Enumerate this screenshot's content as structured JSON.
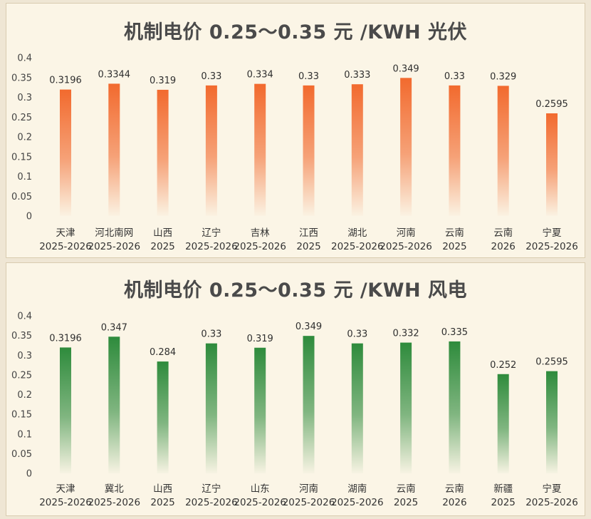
{
  "chart_data": [
    {
      "type": "bar",
      "title": "机制电价 0.25～0.35 元 /KWH 光伏",
      "categories": [
        [
          "天津",
          "2025-2026"
        ],
        [
          "河北南网",
          "2025-2026"
        ],
        [
          "山西",
          "2025"
        ],
        [
          "辽宁",
          "2025-2026"
        ],
        [
          "吉林",
          "2025-2026"
        ],
        [
          "江西",
          "2025"
        ],
        [
          "湖北",
          "2025-2026"
        ],
        [
          "河南",
          "2025-2026"
        ],
        [
          "云南",
          "2025"
        ],
        [
          "云南",
          "2026"
        ],
        [
          "宁夏",
          "2025-2026"
        ]
      ],
      "values": [
        0.3196,
        0.3344,
        0.319,
        0.33,
        0.334,
        0.33,
        0.333,
        0.349,
        0.33,
        0.329,
        0.2595
      ],
      "data_labels": [
        "0.3196",
        "0.3344",
        "0.319",
        "0.33",
        "0.334",
        "0.33",
        "0.333",
        "0.349",
        "0.33",
        "0.329",
        "0.2595"
      ],
      "ylim": [
        0,
        0.4
      ],
      "yticks": [
        "0",
        "0.05",
        "0.1",
        "0.15",
        "0.2",
        "0.25",
        "0.3",
        "0.35",
        "0.4"
      ],
      "grid": false,
      "xlabel": "",
      "ylabel": "",
      "color": "#f26a2e"
    },
    {
      "type": "bar",
      "title": "机制电价 0.25～0.35 元 /KWH 风电",
      "categories": [
        [
          "天津",
          "2025-2026"
        ],
        [
          "冀北",
          "2025-2026"
        ],
        [
          "山西",
          "2025"
        ],
        [
          "辽宁",
          "2025-2026"
        ],
        [
          "山东",
          "2025-2026"
        ],
        [
          "河南",
          "2025-2026"
        ],
        [
          "湖南",
          "2025-2026"
        ],
        [
          "云南",
          "2025"
        ],
        [
          "云南",
          "2026"
        ],
        [
          "新疆",
          "2025"
        ],
        [
          "宁夏",
          "2025-2026"
        ]
      ],
      "values": [
        0.3196,
        0.347,
        0.284,
        0.33,
        0.319,
        0.349,
        0.33,
        0.332,
        0.335,
        0.252,
        0.2595
      ],
      "data_labels": [
        "0.3196",
        "0.347",
        "0.284",
        "0.33",
        "0.319",
        "0.349",
        "0.33",
        "0.332",
        "0.335",
        "0.252",
        "0.2595"
      ],
      "ylim": [
        0,
        0.4
      ],
      "yticks": [
        "0",
        "0.05",
        "0.1",
        "0.15",
        "0.2",
        "0.25",
        "0.3",
        "0.35",
        "0.4"
      ],
      "grid": false,
      "xlabel": "",
      "ylabel": "",
      "color": "#2e8b3c"
    }
  ]
}
